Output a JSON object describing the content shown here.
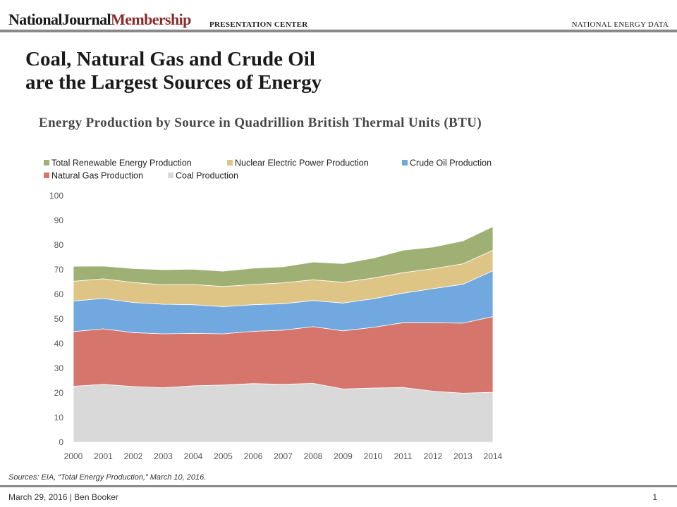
{
  "header": {
    "brand_main": "NationalJournal",
    "brand_accent": "Membership",
    "brand_sub": "PRESENTATION CENTER",
    "section": "NATIONAL ENERGY DATA"
  },
  "slide": {
    "title_line1": "Coal, Natural Gas and Crude Oil",
    "title_line2": "are the Largest Sources of Energy"
  },
  "chart_data": {
    "type": "area",
    "stacked": true,
    "title": "Energy Production by Source in Quadrillion British Thermal Units (BTU)",
    "xlabel": "",
    "ylabel": "",
    "ylim": [
      0,
      100
    ],
    "yticks": [
      "0",
      "10",
      "20",
      "30",
      "40",
      "50",
      "60",
      "70",
      "80",
      "90",
      "100"
    ],
    "grid": false,
    "legend_position": "top",
    "x": [
      "2000",
      "2001",
      "2002",
      "2003",
      "2004",
      "2005",
      "2006",
      "2007",
      "2008",
      "2009",
      "2010",
      "2011",
      "2012",
      "2013",
      "2014"
    ],
    "series": [
      {
        "name": "Coal Production",
        "color": "#d9d9d9",
        "values": [
          22.7,
          23.5,
          22.6,
          22.1,
          22.9,
          23.2,
          23.8,
          23.5,
          23.9,
          21.6,
          22.0,
          22.2,
          20.7,
          19.9,
          20.3
        ]
      },
      {
        "name": "Natural Gas Production",
        "color": "#d5756c",
        "values": [
          22.2,
          22.5,
          21.9,
          21.9,
          21.3,
          20.8,
          21.2,
          22.0,
          23.0,
          23.6,
          24.6,
          26.3,
          27.8,
          28.4,
          30.7
        ]
      },
      {
        "name": "Crude Oil Production",
        "color": "#70a8df",
        "values": [
          12.4,
          12.3,
          12.2,
          12.0,
          11.6,
          11.0,
          10.8,
          10.7,
          10.6,
          11.3,
          11.6,
          12.0,
          13.8,
          15.8,
          18.6
        ]
      },
      {
        "name": "Nuclear Electric Power Production",
        "color": "#dfc585",
        "values": [
          8.0,
          8.0,
          8.1,
          7.9,
          8.2,
          8.2,
          8.2,
          8.5,
          8.4,
          8.4,
          8.4,
          8.3,
          8.1,
          8.3,
          8.3
        ]
      },
      {
        "name": "Total Renewable Energy Production",
        "color": "#9fb075",
        "values": [
          6.1,
          5.2,
          5.7,
          6.1,
          6.2,
          6.2,
          6.6,
          6.5,
          7.2,
          7.6,
          8.1,
          9.1,
          8.8,
          9.3,
          9.6
        ]
      }
    ],
    "legend_order": [
      "Total Renewable Energy Production",
      "Nuclear Electric Power Production",
      "Crude Oil Production",
      "Natural Gas Production",
      "Coal Production"
    ]
  },
  "footer": {
    "sources": "Sources: EIA, “Total Energy Production,” March 10, 2016.",
    "date_author": "March 29, 2016  |  Ben Booker",
    "page_number": "1"
  }
}
